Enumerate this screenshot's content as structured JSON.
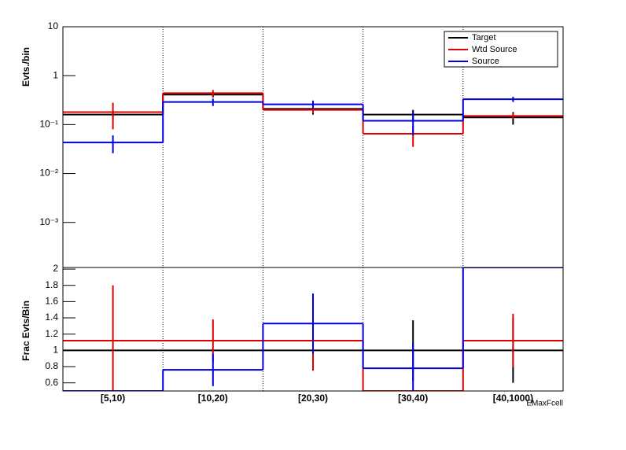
{
  "chart_data": [
    {
      "type": "step",
      "y_label": "Evts./bin",
      "log_y": true,
      "ylim": [
        0.00012,
        10
      ],
      "yticks": [
        {
          "value": 0.001,
          "label": "10⁻³"
        },
        {
          "value": 0.01,
          "label": "10⁻²"
        },
        {
          "value": 0.1,
          "label": "10⁻¹"
        },
        1,
        10
      ],
      "legend": "upper right",
      "series": [
        {
          "name": "Target",
          "color": "#000000",
          "values": [
            0.16,
            0.41,
            0.21,
            0.16,
            0.14
          ],
          "errors": [
            0.03,
            0.05,
            0.05,
            0.04,
            0.04
          ]
        },
        {
          "name": "Wtd Source",
          "color": "#e00000",
          "values": [
            0.18,
            0.44,
            0.2,
            0.065,
            0.15
          ],
          "errors": [
            0.1,
            0.07,
            0.03,
            0.03,
            0.02
          ]
        },
        {
          "name": "Source",
          "color": "#0000e0",
          "values": [
            0.043,
            0.29,
            0.26,
            0.12,
            0.33
          ],
          "errors": [
            0.017,
            0.05,
            0.05,
            0.06,
            0.04
          ]
        }
      ]
    },
    {
      "type": "step",
      "y_label": "Frac Evts/Bin",
      "x_label": "EMaxFcell",
      "categories": [
        "[5,10)",
        "[10,20)",
        "[20,30)",
        "[30,40)",
        "[40,1000)"
      ],
      "ylim": [
        0.5,
        2.02
      ],
      "yticks": [
        0.6,
        0.8,
        1,
        1.2,
        1.4,
        1.6,
        1.8,
        2
      ],
      "series": [
        {
          "name": "Target",
          "color": "#000000",
          "values": [
            1,
            1,
            1,
            1,
            1
          ],
          "errors": [
            0,
            0,
            0,
            0.37,
            0.4
          ]
        },
        {
          "name": "Wtd Source",
          "color": "#e00000",
          "values": [
            1.12,
            1.12,
            1.12,
            0.5,
            1.12
          ],
          "errors": [
            0.68,
            0.26,
            0.37,
            0,
            0.33
          ]
        },
        {
          "name": "Source",
          "color": "#0000e0",
          "values": [
            0.5,
            0.76,
            1.33,
            0.78,
            2.02
          ],
          "errors": [
            0,
            0.2,
            0.37,
            0.3,
            0
          ]
        }
      ]
    }
  ]
}
